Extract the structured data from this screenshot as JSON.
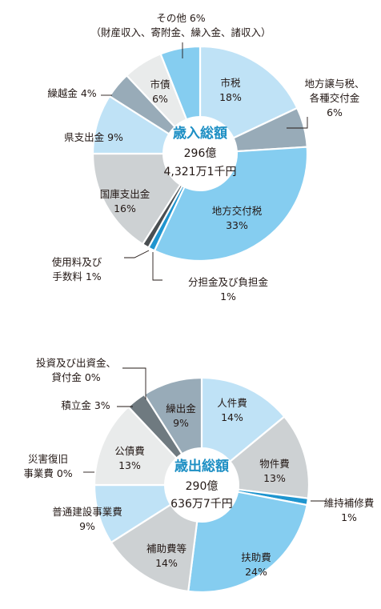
{
  "chart_data": [
    {
      "type": "pie",
      "title": "歳入総額",
      "center_lines": [
        "296億",
        "4,321万1千円"
      ],
      "slices": [
        {
          "label": [
            "市税",
            "18%"
          ],
          "value": 18,
          "color": "#bfe2f6"
        },
        {
          "label": [
            "地方譲与税、",
            "各種交付金",
            "6%"
          ],
          "value": 6,
          "color": "#98abb8"
        },
        {
          "label": [
            "地方交付税",
            "33%"
          ],
          "value": 33,
          "color": "#85cdf0"
        },
        {
          "label": [
            "分担金及び負担金",
            "1%"
          ],
          "value": 1,
          "color": "#1f95cf"
        },
        {
          "label": [
            "使用料及び",
            "手数料 1%"
          ],
          "value": 1,
          "color": "#4a4f52"
        },
        {
          "label": [
            "国庫支出金",
            "16%"
          ],
          "value": 16,
          "color": "#cdd1d3"
        },
        {
          "label": [
            "県支出金 9%"
          ],
          "value": 9,
          "color": "#bfe2f6"
        },
        {
          "label": [
            "繰越金 4%"
          ],
          "value": 4,
          "color": "#98abb8"
        },
        {
          "label": [
            "市債",
            "6%"
          ],
          "value": 6,
          "color": "#e9ebeb"
        },
        {
          "label": [
            "その他 6%",
            "（財産収入、寄附金、繰入金、諸収入）"
          ],
          "value": 6,
          "color": "#85cdf0"
        }
      ]
    },
    {
      "type": "pie",
      "title": "歳出総額",
      "center_lines": [
        "290億",
        "636万7千円"
      ],
      "slices": [
        {
          "label": [
            "人件費",
            "14%"
          ],
          "value": 14,
          "color": "#bfe2f6"
        },
        {
          "label": [
            "物件費",
            "13%"
          ],
          "value": 13,
          "color": "#cdd1d3"
        },
        {
          "label": [
            "維持補修費",
            "1%"
          ],
          "value": 1,
          "color": "#1f95cf"
        },
        {
          "label": [
            "扶助費",
            "24%"
          ],
          "value": 24,
          "color": "#85cdf0"
        },
        {
          "label": [
            "補助費等",
            "14%"
          ],
          "value": 14,
          "color": "#cdd1d3"
        },
        {
          "label": [
            "普通建設事業費",
            "9%"
          ],
          "value": 9,
          "color": "#bfe2f6"
        },
        {
          "label": [
            "災害復旧",
            "事業費 0%"
          ],
          "value": 0,
          "color": "#e9ebeb"
        },
        {
          "label": [
            "公債費",
            "13%"
          ],
          "value": 13,
          "color": "#e9ebeb"
        },
        {
          "label": [
            "積立金 3%"
          ],
          "value": 3,
          "color": "#6f7a80"
        },
        {
          "label": [
            "投資及び出資金、",
            "貸付金 0%"
          ],
          "value": 0,
          "color": "#cdd1d3"
        },
        {
          "label": [
            "繰出金",
            "9%"
          ],
          "value": 9,
          "color": "#98abb8"
        }
      ]
    }
  ]
}
